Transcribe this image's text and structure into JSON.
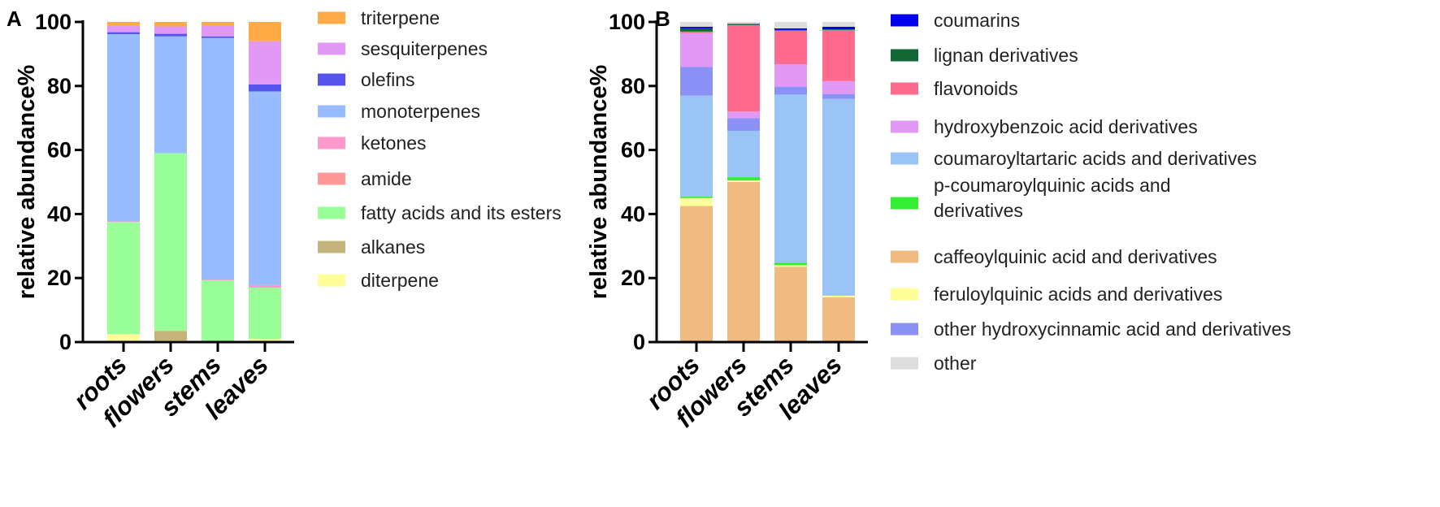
{
  "chart_data": [
    {
      "panel": "A",
      "type": "bar",
      "stacked": true,
      "ylabel": "relative abundance%",
      "xlabel": "",
      "ylim": [
        0,
        100
      ],
      "yticks": [
        0,
        20,
        40,
        60,
        80,
        100
      ],
      "categories": [
        "roots",
        "flowers",
        "stems",
        "leaves"
      ],
      "legend_position": "right",
      "series": [
        {
          "name": "diterpene",
          "color": "#FFFF99",
          "values": [
            2.5,
            0.5,
            0.3,
            1
          ]
        },
        {
          "name": "alkanes",
          "color": "#C4B47A",
          "values": [
            0,
            3,
            0,
            0
          ]
        },
        {
          "name": "fatty acids and its esters",
          "color": "#99FF99",
          "values": [
            35,
            55.5,
            19,
            16
          ]
        },
        {
          "name": "amide",
          "color": "#FF9999",
          "values": [
            0,
            0,
            0,
            0
          ]
        },
        {
          "name": "ketones",
          "color": "#FF99CC",
          "values": [
            0.2,
            0,
            0.2,
            0.8
          ]
        },
        {
          "name": "monoterpenes",
          "color": "#99BBFF",
          "values": [
            58.5,
            36.5,
            75.5,
            60.5
          ]
        },
        {
          "name": "olefins",
          "color": "#5555EE",
          "values": [
            0.6,
            0.8,
            0.5,
            2.2
          ]
        },
        {
          "name": "sesquiterpenes",
          "color": "#E199F5",
          "values": [
            2.2,
            2.3,
            3.5,
            13.5
          ]
        },
        {
          "name": "triterpene",
          "color": "#FFAA44",
          "values": [
            1,
            1.4,
            1,
            6
          ]
        }
      ],
      "legend_order": [
        "triterpene",
        "sesquiterpenes",
        "olefins",
        "monoterpenes",
        "ketones",
        "amide",
        "fatty acids and its esters",
        "alkanes",
        "diterpene"
      ]
    },
    {
      "panel": "B",
      "type": "bar",
      "stacked": true,
      "ylabel": "relative abundance%",
      "xlabel": "",
      "ylim": [
        0,
        100
      ],
      "yticks": [
        0,
        20,
        40,
        60,
        80,
        100
      ],
      "categories": [
        "roots",
        "flowers",
        "stems",
        "leaves"
      ],
      "legend_position": "right",
      "series": [
        {
          "name": "caffeoylquinic acid and derivatives",
          "color": "#F0BB80",
          "values": [
            42.5,
            50,
            23.5,
            14
          ]
        },
        {
          "name": "feruloylquinic acids and derivatives",
          "color": "#FFFF99",
          "values": [
            2.5,
            0.5,
            0.5,
            0.5
          ]
        },
        {
          "name": "p-coumaroylquinic acids and derivatives",
          "color": "#33EE33",
          "values": [
            0.5,
            1,
            0.8,
            0
          ]
        },
        {
          "name": "coumaroyltartaric acids and derivatives",
          "color": "#99C4F5",
          "values": [
            31.5,
            14.5,
            52.5,
            61.5
          ]
        },
        {
          "name": "other hydroxycinnamic acid and derivatives",
          "color": "#8C91F5",
          "values": [
            9,
            4,
            2.5,
            1.5
          ]
        },
        {
          "name": "hydroxybenzoic acid derivatives",
          "color": "#E199F5",
          "values": [
            10.5,
            2,
            7,
            4
          ]
        },
        {
          "name": "flavonoids",
          "color": "#FF6B8F",
          "values": [
            0.5,
            27,
            10.5,
            16
          ]
        },
        {
          "name": "lignan derivatives",
          "color": "#116633",
          "values": [
            1,
            0.2,
            0.2,
            0.2
          ]
        },
        {
          "name": "coumarins",
          "color": "#0000EE",
          "values": [
            0.5,
            0.2,
            0.5,
            0.8
          ]
        },
        {
          "name": "other",
          "color": "#DDDDDD",
          "values": [
            1.5,
            0.6,
            2,
            1.5
          ]
        }
      ],
      "legend_order": [
        "coumarins",
        "lignan derivatives",
        "flavonoids",
        "hydroxybenzoic acid derivatives",
        "coumaroyltartaric acids and derivatives",
        "p-coumaroylquinic acids and derivatives",
        "caffeoylquinic acid and derivatives",
        "feruloylquinic acids and derivatives",
        "other hydroxycinnamic acid and derivatives",
        "other"
      ]
    }
  ]
}
